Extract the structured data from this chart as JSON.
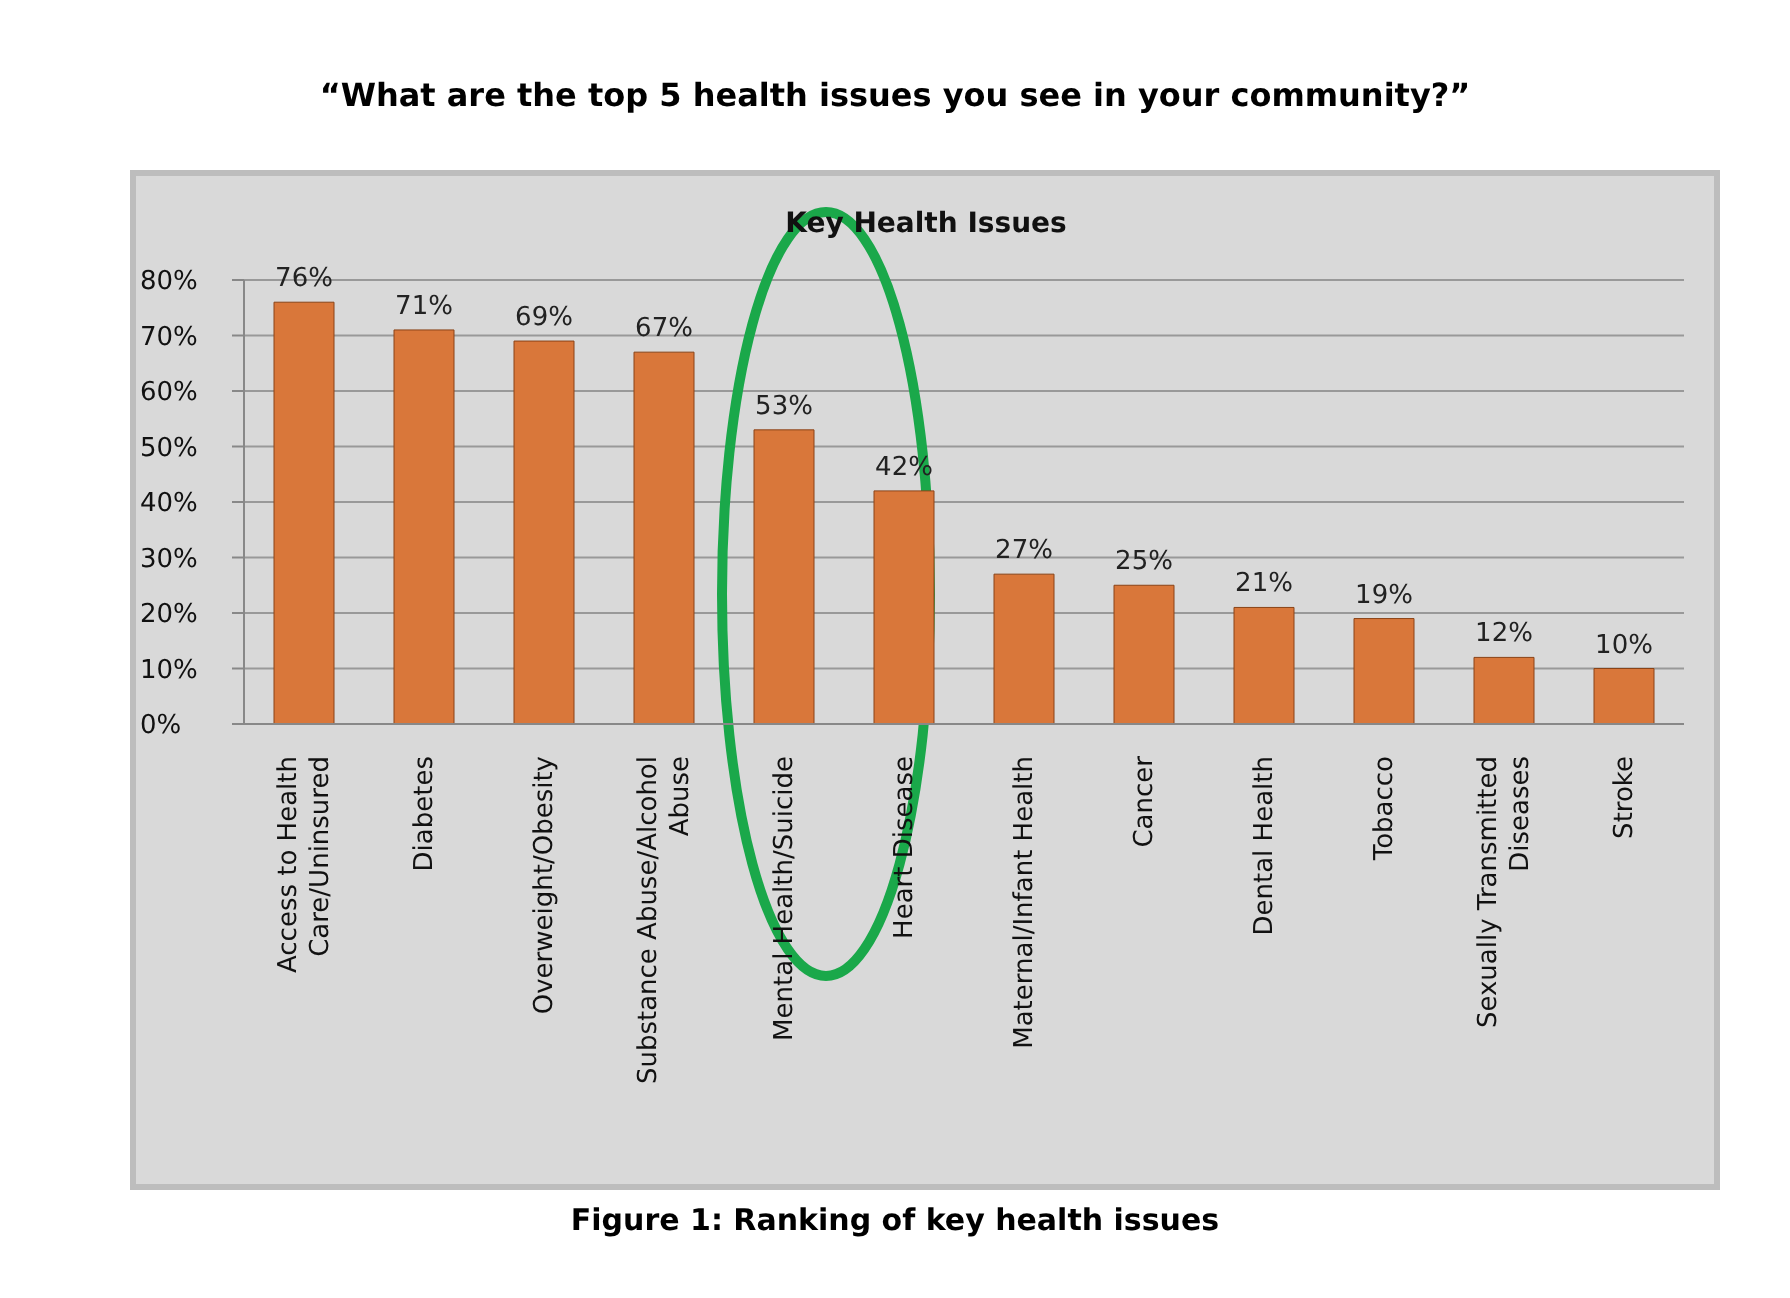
{
  "chart_data": {
    "type": "bar",
    "title": "“What are the top 5 health issues you see in your community?”",
    "subtitle": "Key Health Issues",
    "categories": [
      "Access to Health Care/Uninsured",
      "Diabetes",
      "Overweight/Obesity",
      "Substance Abuse/Alcohol Abuse",
      "Mental Health/Suicide",
      "Heart Disease",
      "Maternal/Infant Health",
      "Cancer",
      "Dental Health",
      "Tobacco",
      "Sexually Transmitted Diseases",
      "Stroke"
    ],
    "values": [
      76,
      71,
      69,
      67,
      53,
      42,
      27,
      25,
      21,
      19,
      12,
      10
    ],
    "value_labels": [
      "76%",
      "71%",
      "69%",
      "67%",
      "53%",
      "42%",
      "27%",
      "25%",
      "21%",
      "19%",
      "12%",
      "10%"
    ],
    "color": "#d9773a",
    "ylim": [
      0,
      80
    ],
    "yticks": [
      {
        "value": 0,
        "label": "0%"
      },
      {
        "value": 10,
        "label": "10%"
      },
      {
        "value": 20,
        "label": "20%"
      },
      {
        "value": 30,
        "label": "30%"
      },
      {
        "value": 40,
        "label": "40%"
      },
      {
        "value": 50,
        "label": "50%"
      },
      {
        "value": 60,
        "label": "60%"
      },
      {
        "value": 70,
        "label": "70%"
      },
      {
        "value": 80,
        "label": "80%"
      }
    ],
    "grid": "y",
    "legend": false,
    "annotations": [
      "Figure 1: Ranking of key health issues"
    ]
  }
}
